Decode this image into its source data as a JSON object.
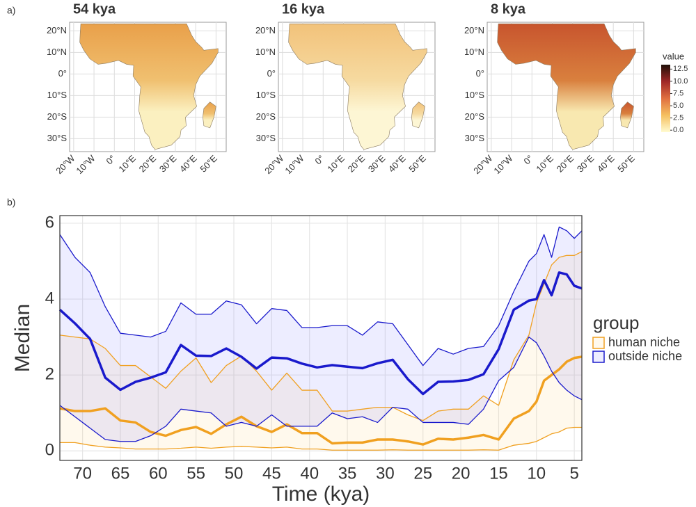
{
  "chart_data": [
    {
      "type": "map",
      "panel_label": "a)",
      "title": "54 kya",
      "fill_top": "#e9a04a",
      "fill_mid": "#f0c070",
      "fill_bottom": "#fbf0c0",
      "xlim": [
        -22,
        55
      ],
      "ylim": [
        -36,
        24
      ],
      "xticks": [
        {
          "value": -20,
          "label": "20°W"
        },
        {
          "value": -10,
          "label": "10°W"
        },
        {
          "value": 0,
          "label": "0°"
        },
        {
          "value": 10,
          "label": "10°E"
        },
        {
          "value": 20,
          "label": "20°E"
        },
        {
          "value": 30,
          "label": "30°E"
        },
        {
          "value": 40,
          "label": "40°E"
        },
        {
          "value": 50,
          "label": "50°E"
        }
      ],
      "yticks": [
        {
          "value": 20,
          "label": "20°N"
        },
        {
          "value": 10,
          "label": "10°N"
        },
        {
          "value": 0,
          "label": "0°"
        },
        {
          "value": -10,
          "label": "10°S"
        },
        {
          "value": -20,
          "label": "20°S"
        },
        {
          "value": -30,
          "label": "30°S"
        }
      ]
    },
    {
      "type": "map",
      "title": "16 kya",
      "fill_top": "#f2c27a",
      "fill_mid": "#f6daa0",
      "fill_bottom": "#fdf6d4",
      "xlim": [
        -22,
        55
      ],
      "ylim": [
        -36,
        24
      ],
      "xticks": [
        {
          "value": -20,
          "label": "20°W"
        },
        {
          "value": -10,
          "label": "10°W"
        },
        {
          "value": 0,
          "label": "0°"
        },
        {
          "value": 10,
          "label": "10°E"
        },
        {
          "value": 20,
          "label": "20°E"
        },
        {
          "value": 30,
          "label": "30°E"
        },
        {
          "value": 40,
          "label": "40°E"
        },
        {
          "value": 50,
          "label": "50°E"
        }
      ],
      "yticks": [
        {
          "value": 20,
          "label": "20°N"
        },
        {
          "value": 10,
          "label": "10°N"
        },
        {
          "value": 0,
          "label": "0°"
        },
        {
          "value": -10,
          "label": "10°S"
        },
        {
          "value": -20,
          "label": "20°S"
        },
        {
          "value": -30,
          "label": "30°S"
        }
      ]
    },
    {
      "type": "map",
      "title": "8 kya",
      "fill_top": "#c8552e",
      "fill_mid": "#d9803e",
      "fill_bottom": "#f8e8b0",
      "xlim": [
        -22,
        55
      ],
      "ylim": [
        -36,
        24
      ],
      "xticks": [
        {
          "value": -20,
          "label": "20°W"
        },
        {
          "value": -10,
          "label": "10°W"
        },
        {
          "value": 0,
          "label": "0°"
        },
        {
          "value": 10,
          "label": "10°E"
        },
        {
          "value": 20,
          "label": "20°E"
        },
        {
          "value": 30,
          "label": "30°E"
        },
        {
          "value": 40,
          "label": "40°E"
        },
        {
          "value": 50,
          "label": "50°E"
        }
      ],
      "yticks": [
        {
          "value": 20,
          "label": "20°N"
        },
        {
          "value": 10,
          "label": "10°N"
        },
        {
          "value": 0,
          "label": "0°"
        },
        {
          "value": -10,
          "label": "10°S"
        },
        {
          "value": -20,
          "label": "20°S"
        },
        {
          "value": -30,
          "label": "30°S"
        }
      ],
      "colorbar": {
        "title": "value",
        "lim": [
          -0.4,
          13.4
        ],
        "colors": [
          "#fffbd0",
          "#f5c060",
          "#e07040",
          "#a02828",
          "#201008"
        ],
        "ticks": [
          12.5,
          {
            "value": 10,
            "label": "10.0"
          },
          7.5,
          {
            "value": 5,
            "label": "5.0"
          },
          2.5,
          {
            "value": 0,
            "label": "0.0"
          }
        ]
      }
    },
    {
      "type": "line",
      "panel_label": "b)",
      "x_label": "Time (kya)",
      "y_label": "Median",
      "x": [
        73,
        71,
        69,
        67,
        65,
        63,
        61,
        59,
        57,
        55,
        53,
        51,
        49,
        47,
        45,
        43,
        41,
        39,
        37,
        35,
        33,
        31,
        29,
        27,
        25,
        23,
        21,
        19,
        17,
        15,
        13,
        11,
        10,
        9,
        8,
        7,
        6,
        5,
        4
      ],
      "xlim": [
        73,
        4
      ],
      "ylim": [
        -0.25,
        6.2
      ],
      "xticks": [
        70,
        65,
        60,
        55,
        50,
        45,
        40,
        35,
        30,
        25,
        20,
        15,
        10,
        5
      ],
      "yticks": [
        0,
        2,
        4,
        6
      ],
      "grid": true,
      "legend_title": "group",
      "series": [
        {
          "name": "human niche",
          "color": "#f0a020",
          "fill": "rgba(255,200,80,0.10)",
          "values": [
            1.12,
            1.05,
            1.05,
            1.12,
            0.8,
            0.75,
            0.5,
            0.4,
            0.55,
            0.63,
            0.45,
            0.7,
            0.9,
            0.65,
            0.5,
            0.7,
            0.47,
            0.47,
            0.2,
            0.22,
            0.22,
            0.3,
            0.3,
            0.25,
            0.17,
            0.32,
            0.3,
            0.35,
            0.42,
            0.3,
            0.85,
            1.05,
            1.3,
            1.85,
            2.0,
            2.15,
            2.35,
            2.45,
            2.48
          ],
          "upper": [
            3.05,
            3.0,
            2.95,
            2.7,
            2.25,
            2.25,
            1.95,
            1.65,
            2.1,
            2.45,
            1.8,
            2.25,
            2.5,
            2.1,
            1.6,
            2.05,
            1.6,
            1.6,
            1.05,
            1.05,
            1.1,
            1.15,
            1.15,
            0.95,
            0.8,
            1.05,
            1.1,
            1.1,
            1.45,
            1.2,
            2.4,
            3.05,
            3.9,
            4.4,
            4.9,
            5.1,
            5.15,
            5.15,
            5.25
          ],
          "lower": [
            0.22,
            0.22,
            0.15,
            0.1,
            0.08,
            0.05,
            0.05,
            0.05,
            0.07,
            0.1,
            0.07,
            0.1,
            0.12,
            0.1,
            0.08,
            0.1,
            0.05,
            0.05,
            0.02,
            0.02,
            0.02,
            0.02,
            0.03,
            0.02,
            0.02,
            0.02,
            0.02,
            0.02,
            0.03,
            0.02,
            0.15,
            0.2,
            0.25,
            0.35,
            0.45,
            0.5,
            0.6,
            0.62,
            0.62
          ]
        },
        {
          "name": "outside niche",
          "color": "#1a1acc",
          "fill": "rgba(110,110,255,0.12)",
          "values": [
            3.72,
            3.36,
            2.95,
            1.93,
            1.61,
            1.82,
            1.93,
            2.07,
            2.79,
            2.51,
            2.5,
            2.7,
            2.48,
            2.17,
            2.46,
            2.44,
            2.3,
            2.2,
            2.26,
            2.22,
            2.18,
            2.31,
            2.4,
            1.89,
            1.5,
            1.82,
            1.83,
            1.87,
            2.02,
            2.68,
            3.72,
            3.96,
            4.0,
            4.5,
            4.1,
            4.7,
            4.65,
            4.35,
            4.28
          ],
          "upper": [
            5.7,
            5.1,
            4.7,
            3.8,
            3.1,
            3.05,
            3.0,
            3.15,
            3.9,
            3.6,
            3.6,
            3.95,
            3.85,
            3.35,
            3.75,
            3.7,
            3.25,
            3.25,
            3.3,
            3.3,
            3.05,
            3.4,
            3.35,
            2.8,
            2.25,
            2.7,
            2.55,
            2.7,
            2.75,
            3.3,
            4.2,
            5.0,
            5.2,
            5.7,
            5.1,
            5.9,
            5.8,
            5.6,
            5.8
          ],
          "lower": [
            1.2,
            0.9,
            0.6,
            0.3,
            0.25,
            0.25,
            0.4,
            0.65,
            1.1,
            1.05,
            1.0,
            0.65,
            0.75,
            0.65,
            0.95,
            0.65,
            0.65,
            0.65,
            1.0,
            0.85,
            0.9,
            0.75,
            1.15,
            1.1,
            0.75,
            0.75,
            0.75,
            0.7,
            1.1,
            1.85,
            2.2,
            3.0,
            2.85,
            2.5,
            2.1,
            1.8,
            1.6,
            1.45,
            1.35
          ]
        }
      ]
    }
  ]
}
